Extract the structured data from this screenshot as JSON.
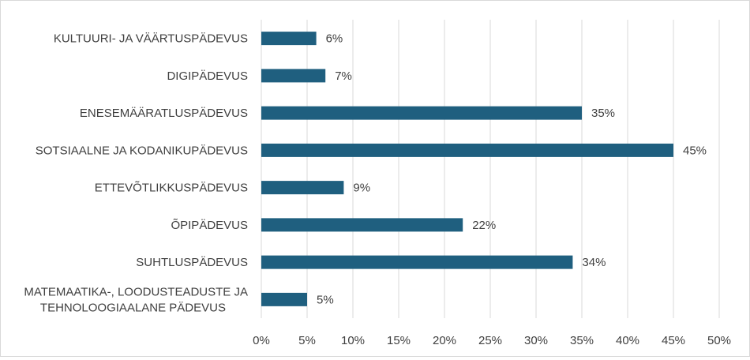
{
  "chart_data": {
    "type": "bar",
    "orientation": "horizontal",
    "categories": [
      [
        "KULTUURI- JA VÄÄRTUSPÄDEVUS"
      ],
      [
        "DIGIPÄDEVUS"
      ],
      [
        "ENESEMÄÄRATLUSPÄDEVUS"
      ],
      [
        "SOTSIAALNE JA KODANIKUPÄDEVUS"
      ],
      [
        "ETTEVÕTLIKKUSPÄDEVUS"
      ],
      [
        "ÕPIPÄDEVUS"
      ],
      [
        "SUHTLUSPÄDEVUS"
      ],
      [
        "MATEMAATIKA-, LOODUSTEADUSTE JA",
        "TEHNOLOOGIAALANE PÄDEVUS"
      ]
    ],
    "values": [
      6,
      7,
      35,
      45,
      9,
      22,
      34,
      5
    ],
    "data_labels": [
      "6%",
      "7%",
      "35%",
      "45%",
      "9%",
      "22%",
      "34%",
      "5%"
    ],
    "x_ticks": [
      "0%",
      "5%",
      "10%",
      "15%",
      "20%",
      "25%",
      "30%",
      "35%",
      "40%",
      "45%",
      "50%"
    ],
    "xlim": [
      0,
      50
    ],
    "grid": true,
    "bar_color": "#1f5f7f"
  }
}
